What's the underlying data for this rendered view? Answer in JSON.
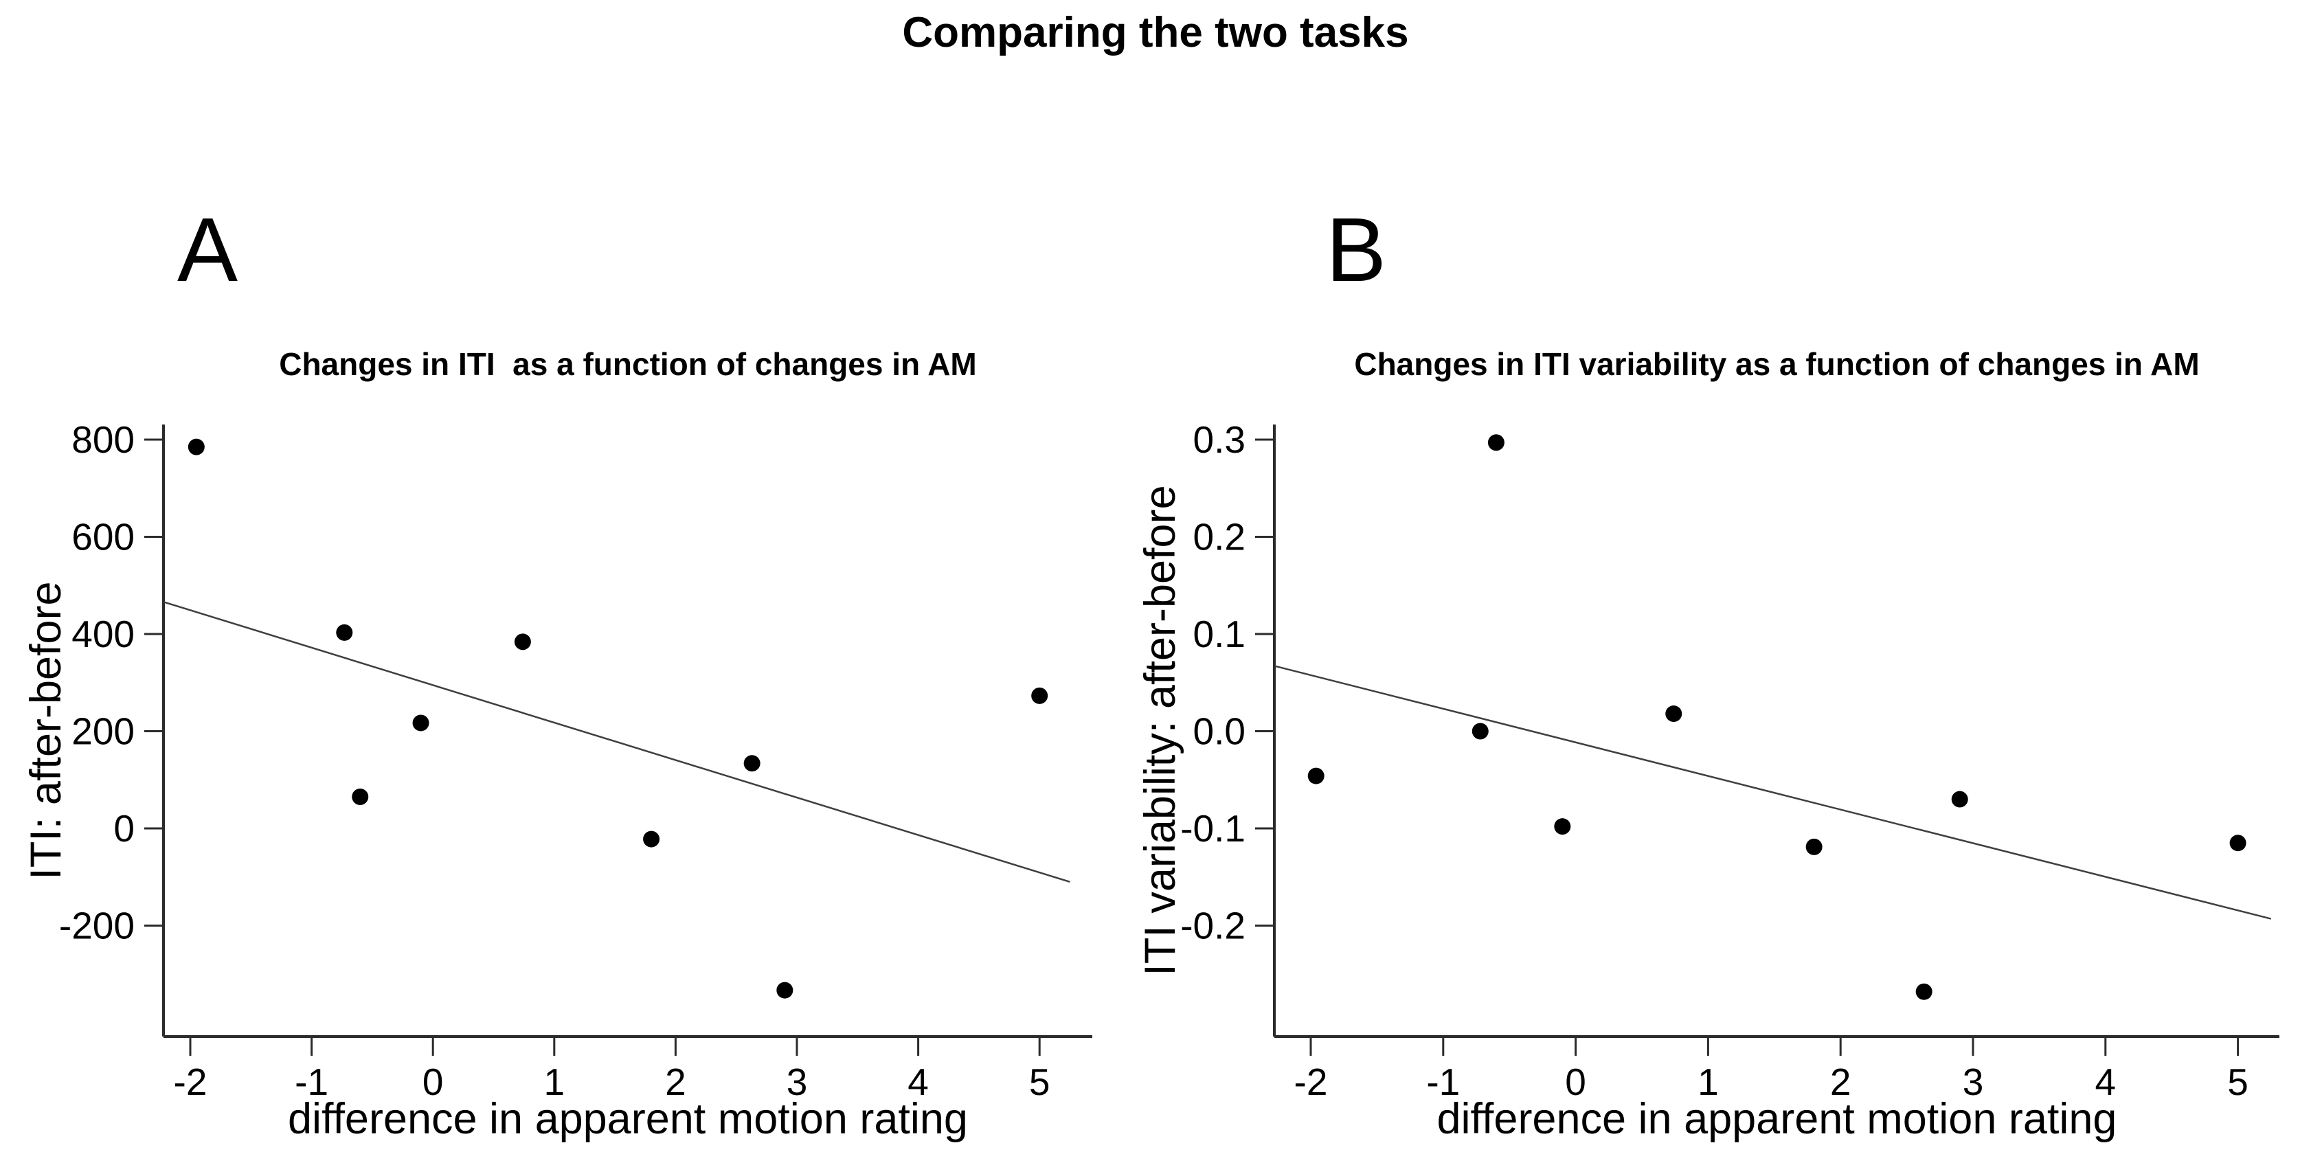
{
  "figure": {
    "title": "Comparing the two tasks",
    "background_color": "#ffffff"
  },
  "style": {
    "point_color": "#000000",
    "fit_line_color": "#3f3f3f",
    "axis_color": "#2b2b2b",
    "text_color": "#000000"
  },
  "chart_data": [
    {
      "panel_label": "A",
      "type": "scatter",
      "title": "Changes in ITI  as a function of changes in AM",
      "xlabel": "difference in apparent motion rating",
      "ylabel": "ITI: after-before",
      "x_ticks": [
        -2,
        -1,
        0,
        1,
        2,
        3,
        4,
        5
      ],
      "x_tick_labels": [
        "-2",
        "-1",
        "0",
        "1",
        "2",
        "3",
        "4",
        "5"
      ],
      "y_ticks": [
        800,
        600,
        400,
        200,
        0,
        -200
      ],
      "y_tick_labels": [
        "800",
        "600",
        "400",
        "200",
        "0",
        "-200"
      ],
      "xlim": [
        -2.22,
        5.44
      ],
      "ylim": [
        -428,
        831
      ],
      "grid": false,
      "legend": "none",
      "points": [
        [
          -1.95,
          785
        ],
        [
          -0.73,
          403
        ],
        [
          -0.6,
          65
        ],
        [
          -0.1,
          217
        ],
        [
          0.74,
          384
        ],
        [
          1.8,
          -22
        ],
        [
          2.63,
          134
        ],
        [
          2.9,
          -333
        ],
        [
          5.0,
          273
        ]
      ],
      "fit_line": {
        "x1": -2.22,
        "y1": 466,
        "x2": 5.25,
        "y2": -110
      }
    },
    {
      "panel_label": "B",
      "type": "scatter",
      "title": "Changes in ITI variability as a function of changes in AM",
      "xlabel": "difference in apparent motion rating",
      "ylabel": "ITI variability: after-before",
      "x_ticks": [
        -2,
        -1,
        0,
        1,
        2,
        3,
        4,
        5
      ],
      "x_tick_labels": [
        "-2",
        "-1",
        "0",
        "1",
        "2",
        "3",
        "4",
        "5"
      ],
      "y_ticks": [
        0.3,
        0.2,
        0.1,
        0.0,
        -0.1,
        -0.2
      ],
      "y_tick_labels": [
        "0.3",
        "0.2",
        "0.1",
        "0.0",
        "-0.1",
        "-0.2"
      ],
      "xlim": [
        -2.27,
        5.31
      ],
      "ylim": [
        -0.314,
        0.316
      ],
      "grid": false,
      "legend": "none",
      "points": [
        [
          -1.96,
          -0.046
        ],
        [
          -0.72,
          0.0
        ],
        [
          -0.6,
          0.297
        ],
        [
          -0.1,
          -0.098
        ],
        [
          0.74,
          0.018
        ],
        [
          1.8,
          -0.119
        ],
        [
          2.63,
          -0.268
        ],
        [
          2.9,
          -0.07
        ],
        [
          5.0,
          -0.115
        ]
      ],
      "fit_line": {
        "x1": -2.27,
        "y1": 0.067,
        "x2": 5.25,
        "y2": -0.193
      }
    }
  ]
}
